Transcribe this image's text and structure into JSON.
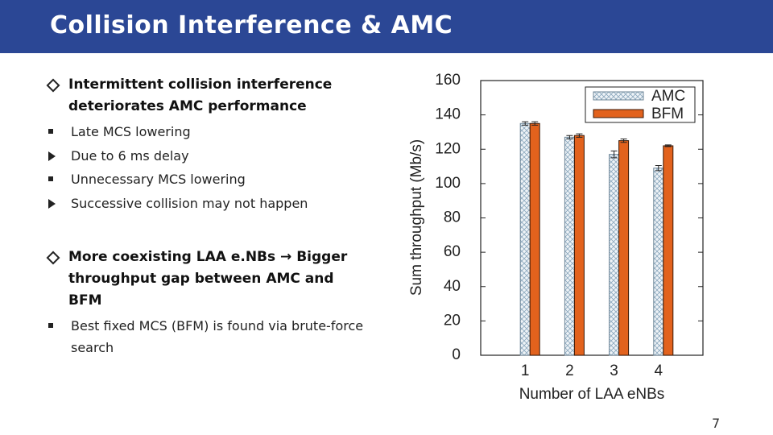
{
  "header": {
    "title": "Collision Interference & AMC"
  },
  "bullets": [
    {
      "text": "Intermittent collision interference deteriorates AMC performance",
      "children": [
        {
          "text": "Late MCS lowering",
          "children": [
            {
              "text": "Due to 6 ms delay"
            }
          ]
        },
        {
          "text": "Unnecessary MCS lowering",
          "children": [
            {
              "text": "Successive collision may not happen"
            }
          ]
        }
      ]
    },
    {
      "text": "More coexisting LAA e.NBs → Bigger throughput gap between AMC and BFM",
      "children": [
        {
          "text": "Best fixed MCS (BFM) is found via brute-force search"
        }
      ]
    }
  ],
  "page_number": "7",
  "chart_data": {
    "type": "bar",
    "x_label": "Number of LAA eNBs",
    "y_label": "Sum throughput (Mb/s)",
    "categories": [
      "1",
      "2",
      "3",
      "4"
    ],
    "series": [
      {
        "name": "AMC",
        "color": "#9fb8cc",
        "hatch": true,
        "values": [
          135,
          127,
          117,
          109
        ],
        "errors": [
          1,
          1,
          2,
          1.5
        ]
      },
      {
        "name": "BFM",
        "color": "#e2621d",
        "hatch": false,
        "values": [
          135,
          128,
          125,
          122
        ],
        "errors": [
          1,
          1,
          1,
          0.5
        ]
      }
    ],
    "ylim": [
      0,
      160
    ],
    "yticks": [
      0,
      20,
      40,
      60,
      80,
      100,
      120,
      140,
      160
    ],
    "legend": "top-right"
  }
}
